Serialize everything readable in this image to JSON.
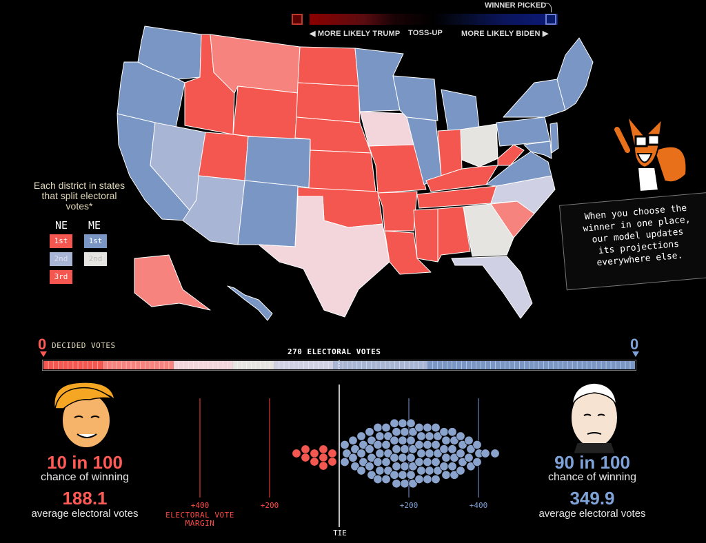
{
  "legend": {
    "more_likely_trump": "◀ MORE LIKELY TRUMP",
    "toss_up": "TOSS-UP",
    "more_likely_biden": "MORE LIKELY BIDEN ▶",
    "winner_picked": "WINNER PICKED"
  },
  "district_key": {
    "note": "Each district in states that split electoral votes*",
    "ne_label": "NE",
    "me_label": "ME",
    "ne": [
      "1st",
      "2nd",
      "3rd"
    ],
    "me": [
      "1st",
      "2nd"
    ]
  },
  "callout": {
    "text": "When you choose the\nwinner in one place,\nour model updates\nits projections\neverywhere else."
  },
  "electoral_bar": {
    "left_decided": "0",
    "right_decided": "0",
    "decided_label": "DECIDED VOTES",
    "center_label": "270 ELECTORAL VOTES"
  },
  "trump": {
    "chance": "10 in 100",
    "chance_label": "chance of winning",
    "avg_votes": "188.1",
    "avg_label": "average electoral votes"
  },
  "biden": {
    "chance": "90 in 100",
    "chance_label": "chance of winning",
    "avg_votes": "349.9",
    "avg_label": "average electoral votes"
  },
  "margin_chart": {
    "title": "ELECTORAL VOTE MARGIN",
    "ticks_trump": [
      "+400",
      "+200"
    ],
    "ticks_biden": [
      "+200",
      "+400"
    ],
    "tie_label": "TIE"
  },
  "colors": {
    "trump_strong": "#f4574f",
    "trump_lean": "#f7837e",
    "trump_tilt": "#f2d6dc",
    "tossup": "#e5e4e0",
    "biden_tilt": "#d0d0e4",
    "biden_lean": "#a9b5d4",
    "biden_strong": "#7a96c4"
  }
}
